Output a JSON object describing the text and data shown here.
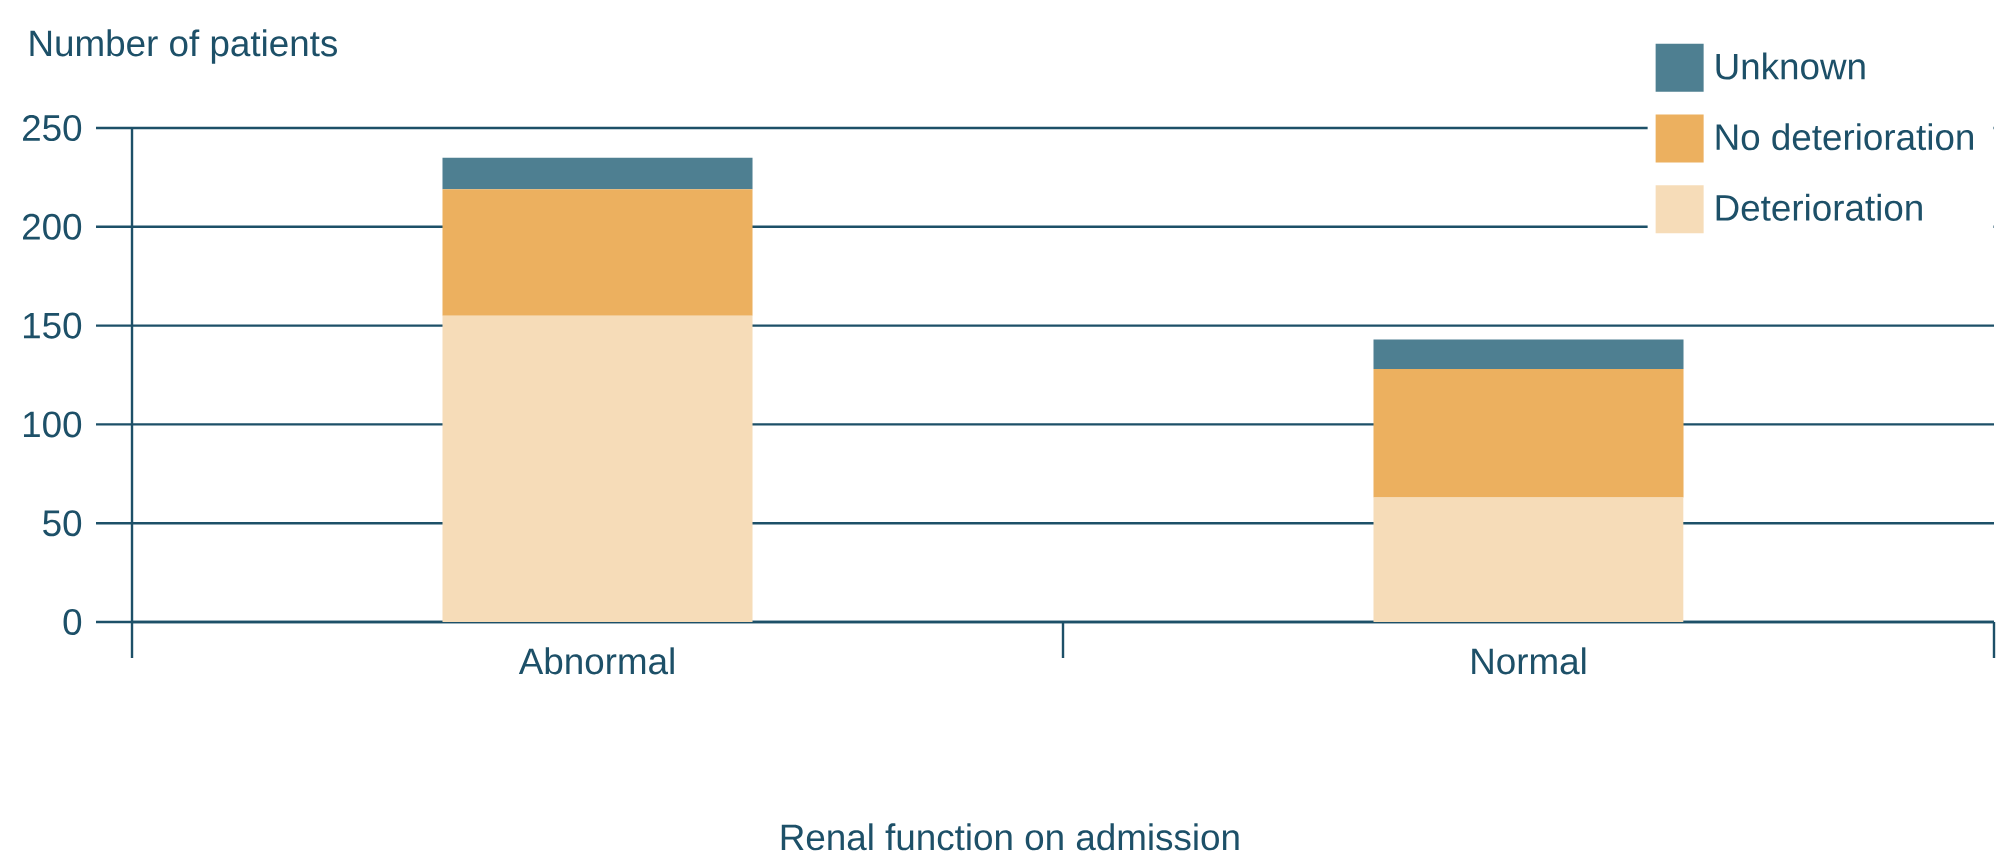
{
  "chart_data": {
    "type": "bar",
    "stacked": true,
    "xlabel": "Renal function on admission",
    "ylabel": "Number of patients",
    "categories": [
      "Abnormal",
      "Normal"
    ],
    "series": [
      {
        "name": "Deterioration",
        "color": "#f6dcb8",
        "values": [
          155,
          63
        ]
      },
      {
        "name": "No deterioration",
        "color": "#ecb05f",
        "values": [
          64,
          65
        ]
      },
      {
        "name": "Unknown",
        "color": "#4e7f91",
        "values": [
          16,
          15
        ]
      }
    ],
    "ylim": [
      0,
      250
    ],
    "yticks": [
      0,
      50,
      100,
      150,
      200,
      250
    ],
    "grid": "y",
    "legend": "top right"
  }
}
